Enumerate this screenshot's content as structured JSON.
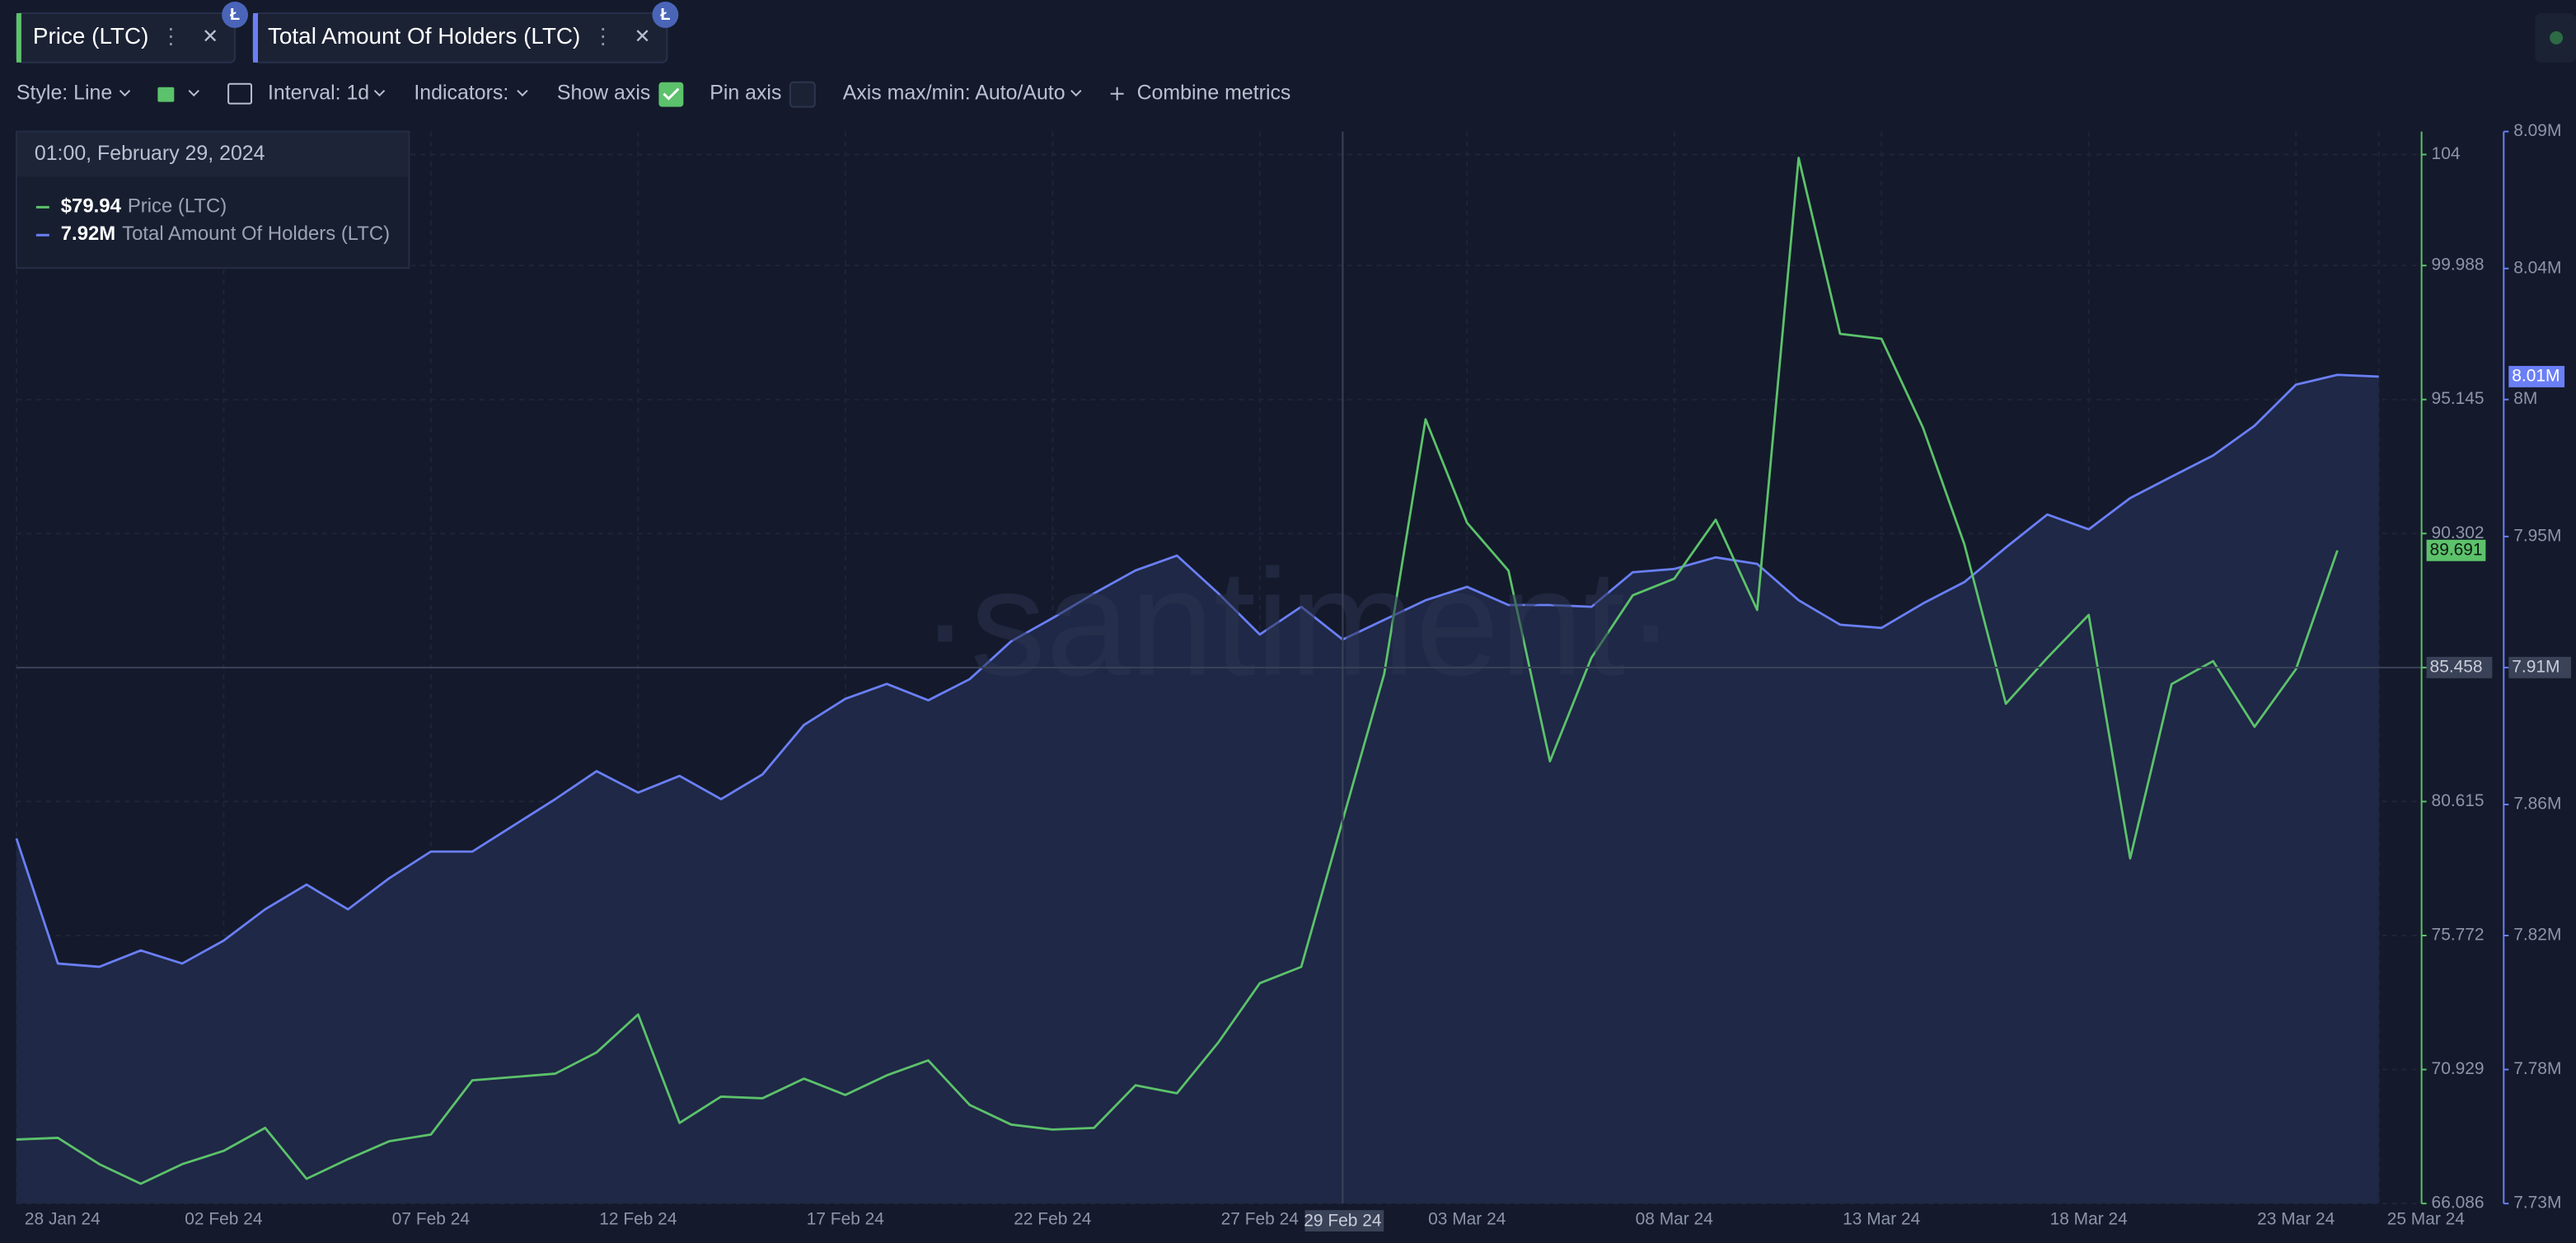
{
  "tabs": {
    "add_hint": null
  },
  "toolbar": {
    "style": "Style: Line",
    "interval": "Interval: 1d",
    "indicators": "Indicators:",
    "show_axis": "Show axis",
    "pin_axis": "Pin axis",
    "axis_minmax": "Axis max/min: Auto/Auto",
    "combine": "Combine metrics"
  },
  "chart_data": {
    "type": "line",
    "watermark": "·santiment·",
    "x": [
      "28 Jan 24",
      "29 Jan 24",
      "30 Jan 24",
      "31 Jan 24",
      "01 Feb 24",
      "02 Feb 24",
      "03 Feb 24",
      "04 Feb 24",
      "05 Feb 24",
      "06 Feb 24",
      "07 Feb 24",
      "08 Feb 24",
      "09 Feb 24",
      "10 Feb 24",
      "11 Feb 24",
      "12 Feb 24",
      "13 Feb 24",
      "14 Feb 24",
      "15 Feb 24",
      "16 Feb 24",
      "17 Feb 24",
      "18 Feb 24",
      "19 Feb 24",
      "20 Feb 24",
      "21 Feb 24",
      "22 Feb 24",
      "23 Feb 24",
      "24 Feb 24",
      "25 Feb 24",
      "26 Feb 24",
      "27 Feb 24",
      "28 Feb 24",
      "29 Feb 24",
      "01 Mar 24",
      "02 Mar 24",
      "03 Mar 24",
      "04 Mar 24",
      "05 Mar 24",
      "06 Mar 24",
      "07 Mar 24",
      "08 Mar 24",
      "09 Mar 24",
      "10 Mar 24",
      "11 Mar 24",
      "12 Mar 24",
      "13 Mar 24",
      "14 Mar 24",
      "15 Mar 24",
      "16 Mar 24",
      "17 Mar 24",
      "18 Mar 24",
      "19 Mar 24",
      "20 Mar 24",
      "21 Mar 24",
      "22 Mar 24",
      "23 Mar 24",
      "24 Mar 24",
      "25 Mar 24"
    ],
    "xticks": [
      "28 Jan 24",
      "02 Feb 24",
      "07 Feb 24",
      "12 Feb 24",
      "17 Feb 24",
      "22 Feb 24",
      "27 Feb 24",
      "03 Mar 24",
      "08 Mar 24",
      "13 Mar 24",
      "18 Mar 24",
      "23 Mar 24",
      "25 Mar 24"
    ],
    "series": [
      {
        "name": "Price (LTC)",
        "color": "#5cc26b",
        "axis": "y",
        "values": [
          68.4,
          68.46,
          67.51,
          66.8,
          67.51,
          67.99,
          68.82,
          66.98,
          67.69,
          68.34,
          68.58,
          70.54,
          70.66,
          70.78,
          71.55,
          72.92,
          69.0,
          69.95,
          69.89,
          70.6,
          70.01,
          70.72,
          71.26,
          69.65,
          68.94,
          68.76,
          68.82,
          70.36,
          70.07,
          71.91,
          74.05,
          74.64,
          79.94,
          85.22,
          94.43,
          90.69,
          88.96,
          82.07,
          85.81,
          88.07,
          88.67,
          90.8,
          87.54,
          103.88,
          97.52,
          97.34,
          94.13,
          89.91,
          84.15,
          85.81,
          87.36,
          78.56,
          84.86,
          85.69,
          83.32,
          85.4,
          89.691,
          null
        ]
      },
      {
        "name": "Total Amount Of Holders (LTC)",
        "color": "#6a7ff6",
        "axis": "y2",
        "area_color": "#1f2846",
        "last_value_label": "8.01M",
        "values": [
          7852600,
          7810600,
          7809500,
          7815000,
          7810600,
          7818300,
          7828800,
          7837100,
          7828800,
          7839300,
          7848200,
          7848200,
          7857000,
          7865800,
          7875200,
          7868000,
          7873600,
          7865800,
          7874100,
          7890700,
          7899500,
          7904500,
          7899000,
          7906100,
          7918800,
          7926600,
          7934900,
          7942600,
          7947600,
          7934900,
          7921100,
          7930400,
          7919400,
          7926000,
          7932600,
          7937100,
          7931000,
          7931000,
          7930400,
          7942000,
          7943100,
          7947000,
          7944800,
          7932600,
          7924400,
          7923300,
          7931500,
          7938700,
          7950300,
          7961400,
          7956400,
          7966900,
          7974100,
          7981200,
          7991200,
          8005000,
          8008300,
          8007700
        ]
      }
    ],
    "ylim": [
      66.086,
      104.831
    ],
    "yticks": [
      66.086,
      70.929,
      75.772,
      80.615,
      85.458,
      90.302,
      95.145,
      99.988,
      104
    ],
    "y2lim": [
      7730000,
      8090000
    ],
    "y2ticks": [
      {
        "value": 7730000,
        "label": "7.73M"
      },
      {
        "value": 7775000,
        "label": "7.78M"
      },
      {
        "value": 7820000,
        "label": "7.82M"
      },
      {
        "value": 7864000,
        "label": "7.86M"
      },
      {
        "value": 7910000,
        "label": "7.91M"
      },
      {
        "value": 7954000,
        "label": "7.95M"
      },
      {
        "value": 8000000,
        "label": "8M"
      },
      {
        "value": 8044000,
        "label": "8.04M"
      },
      {
        "value": 8090000,
        "label": "8.09M"
      }
    ],
    "grid": true,
    "crosshair": {
      "x": "29 Feb 24",
      "y": 85.458,
      "y2": 7910000,
      "y2_label": "7.91M"
    },
    "tooltip": {
      "title": "01:00, February 29, 2024",
      "value_labels": [
        "$79.94",
        "7.92M"
      ]
    }
  }
}
